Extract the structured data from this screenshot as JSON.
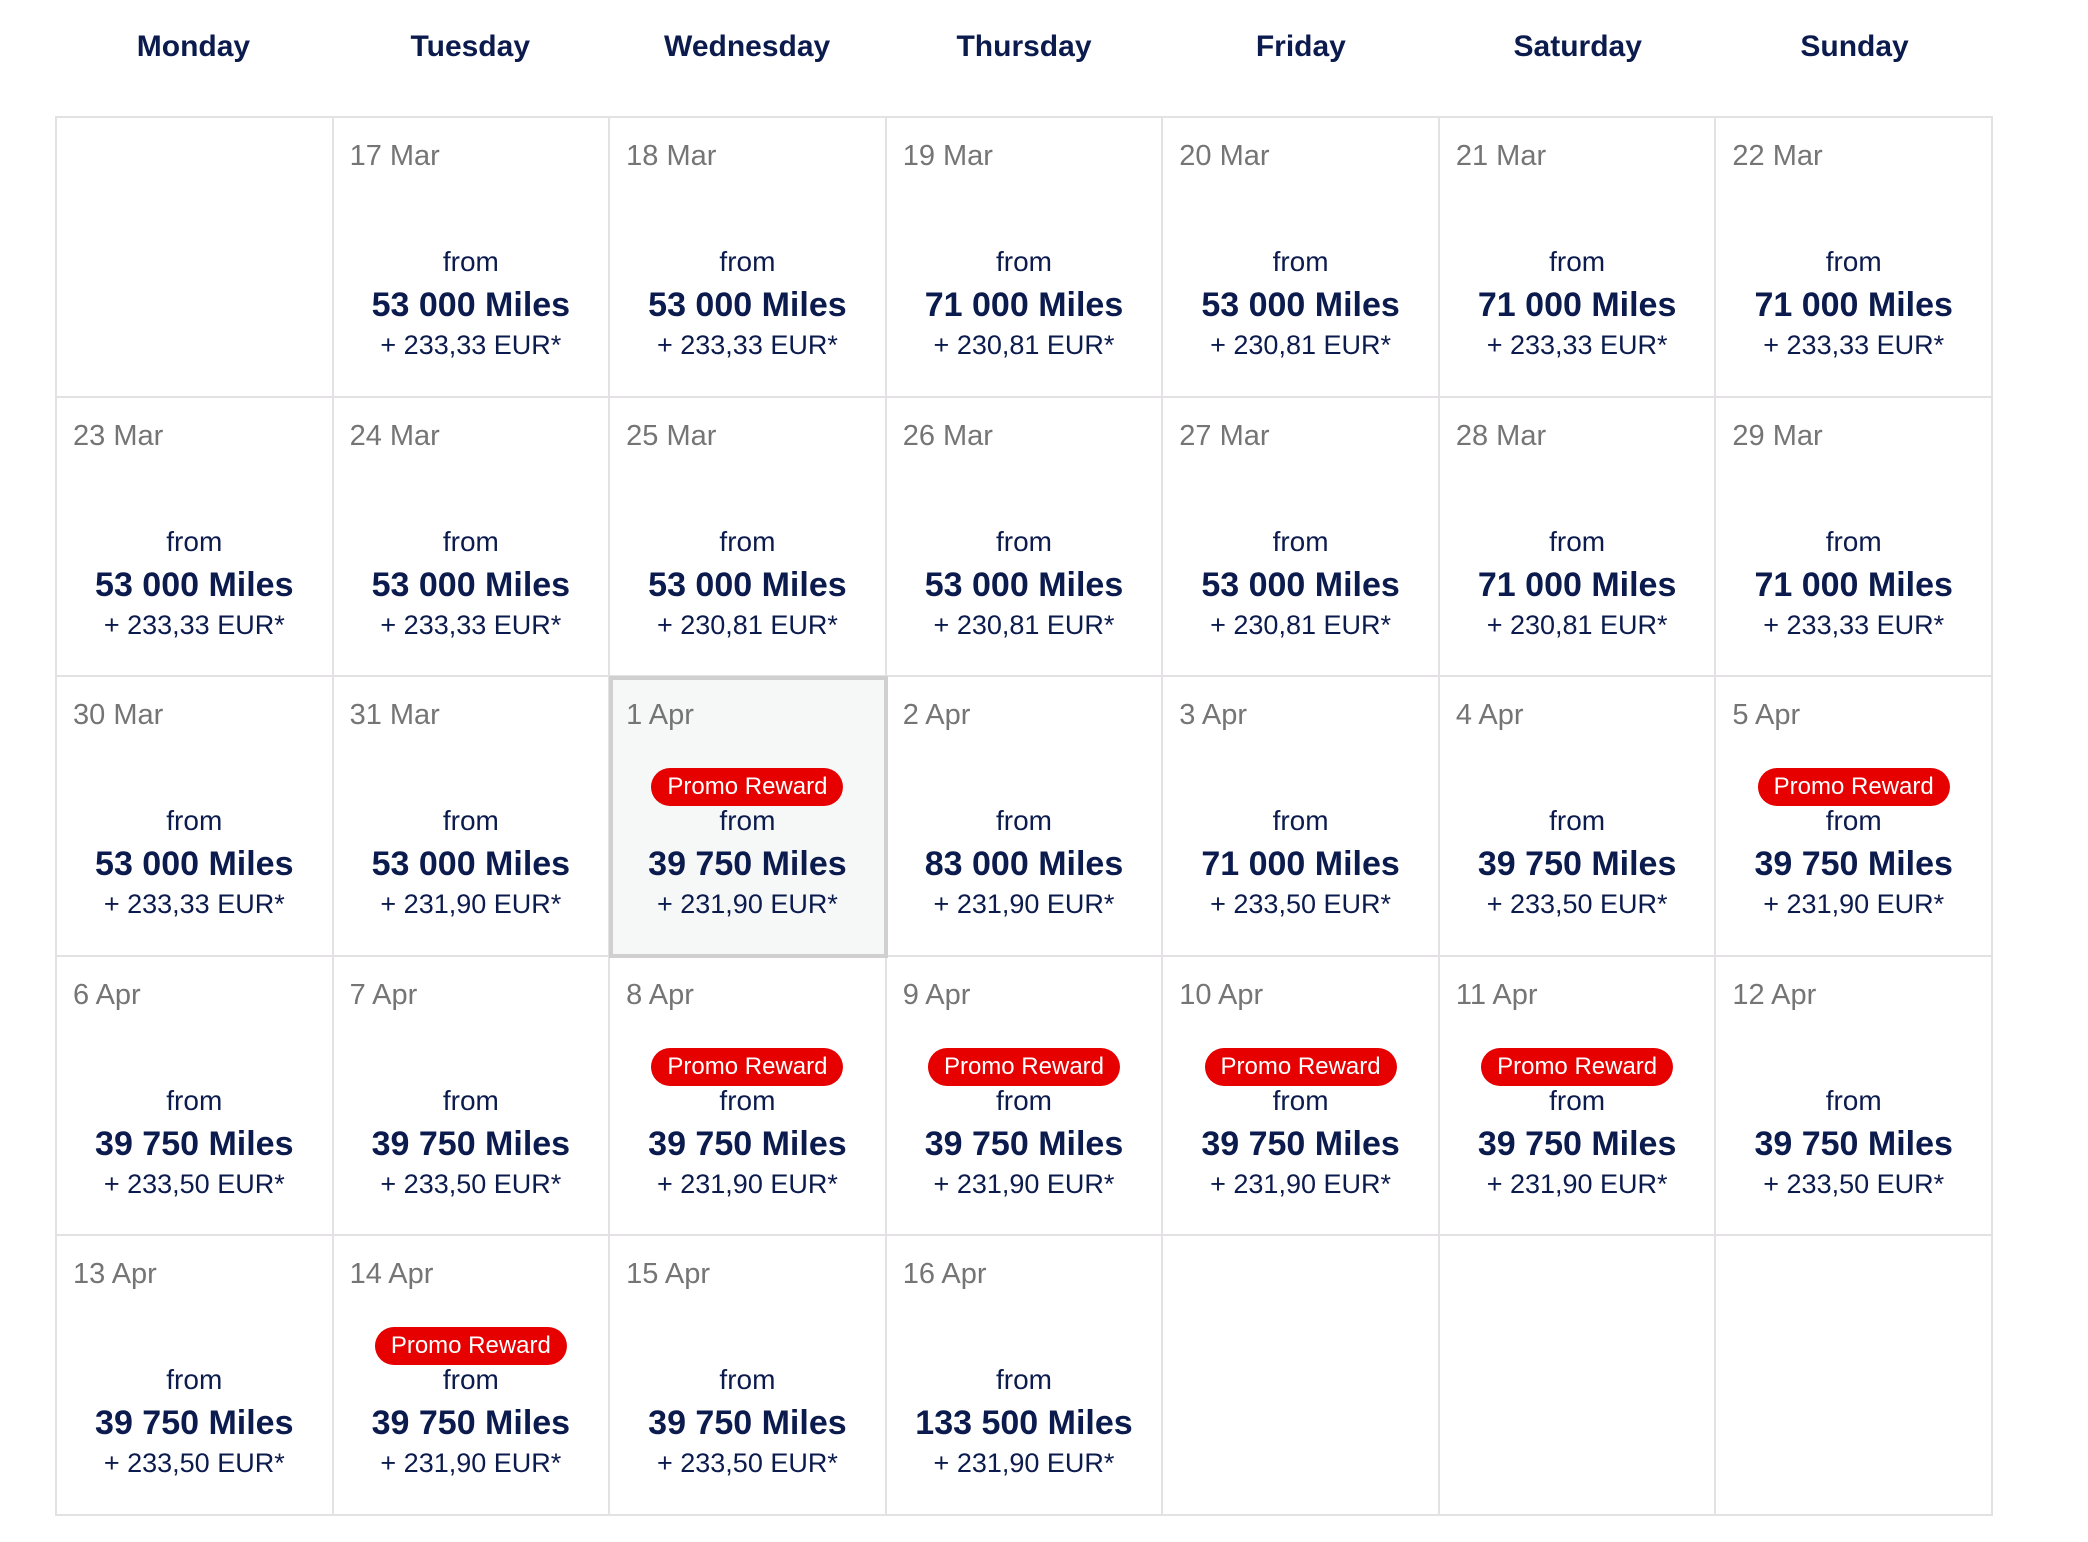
{
  "weekdays": [
    "Monday",
    "Tuesday",
    "Wednesday",
    "Thursday",
    "Friday",
    "Saturday",
    "Sunday"
  ],
  "colors": {
    "text": "#0c1b4d",
    "promo": "#e60000",
    "date": "#757575",
    "border": "#e3e1e3"
  },
  "from_label": "from",
  "promo_label": "Promo Reward",
  "selected_date": "1 Apr",
  "days": [
    null,
    {
      "date": "17 Mar",
      "miles": "53 000 Miles",
      "eur": "+ 233,33 EUR*",
      "promo": false
    },
    {
      "date": "18 Mar",
      "miles": "53 000 Miles",
      "eur": "+ 233,33 EUR*",
      "promo": false
    },
    {
      "date": "19 Mar",
      "miles": "71 000 Miles",
      "eur": "+ 230,81 EUR*",
      "promo": false
    },
    {
      "date": "20 Mar",
      "miles": "53 000 Miles",
      "eur": "+ 230,81 EUR*",
      "promo": false
    },
    {
      "date": "21 Mar",
      "miles": "71 000 Miles",
      "eur": "+ 233,33 EUR*",
      "promo": false
    },
    {
      "date": "22 Mar",
      "miles": "71 000 Miles",
      "eur": "+ 233,33 EUR*",
      "promo": false
    },
    {
      "date": "23 Mar",
      "miles": "53 000 Miles",
      "eur": "+ 233,33 EUR*",
      "promo": false
    },
    {
      "date": "24 Mar",
      "miles": "53 000 Miles",
      "eur": "+ 233,33 EUR*",
      "promo": false
    },
    {
      "date": "25 Mar",
      "miles": "53 000 Miles",
      "eur": "+ 230,81 EUR*",
      "promo": false
    },
    {
      "date": "26 Mar",
      "miles": "53 000 Miles",
      "eur": "+ 230,81 EUR*",
      "promo": false
    },
    {
      "date": "27 Mar",
      "miles": "53 000 Miles",
      "eur": "+ 230,81 EUR*",
      "promo": false
    },
    {
      "date": "28 Mar",
      "miles": "71 000 Miles",
      "eur": "+ 230,81 EUR*",
      "promo": false
    },
    {
      "date": "29 Mar",
      "miles": "71 000 Miles",
      "eur": "+ 233,33 EUR*",
      "promo": false
    },
    {
      "date": "30 Mar",
      "miles": "53 000 Miles",
      "eur": "+ 233,33 EUR*",
      "promo": false
    },
    {
      "date": "31 Mar",
      "miles": "53 000 Miles",
      "eur": "+ 231,90 EUR*",
      "promo": false
    },
    {
      "date": "1 Apr",
      "miles": "39 750 Miles",
      "eur": "+ 231,90 EUR*",
      "promo": true
    },
    {
      "date": "2 Apr",
      "miles": "83 000 Miles",
      "eur": "+ 231,90 EUR*",
      "promo": false
    },
    {
      "date": "3 Apr",
      "miles": "71 000 Miles",
      "eur": "+ 233,50 EUR*",
      "promo": false
    },
    {
      "date": "4 Apr",
      "miles": "39 750 Miles",
      "eur": "+ 233,50 EUR*",
      "promo": false
    },
    {
      "date": "5 Apr",
      "miles": "39 750 Miles",
      "eur": "+ 231,90 EUR*",
      "promo": true
    },
    {
      "date": "6 Apr",
      "miles": "39 750 Miles",
      "eur": "+ 233,50 EUR*",
      "promo": false
    },
    {
      "date": "7 Apr",
      "miles": "39 750 Miles",
      "eur": "+ 233,50 EUR*",
      "promo": false
    },
    {
      "date": "8 Apr",
      "miles": "39 750 Miles",
      "eur": "+ 231,90 EUR*",
      "promo": true
    },
    {
      "date": "9 Apr",
      "miles": "39 750 Miles",
      "eur": "+ 231,90 EUR*",
      "promo": true
    },
    {
      "date": "10 Apr",
      "miles": "39 750 Miles",
      "eur": "+ 231,90 EUR*",
      "promo": true
    },
    {
      "date": "11 Apr",
      "miles": "39 750 Miles",
      "eur": "+ 231,90 EUR*",
      "promo": true
    },
    {
      "date": "12 Apr",
      "miles": "39 750 Miles",
      "eur": "+ 233,50 EUR*",
      "promo": false
    },
    {
      "date": "13 Apr",
      "miles": "39 750 Miles",
      "eur": "+ 233,50 EUR*",
      "promo": false
    },
    {
      "date": "14 Apr",
      "miles": "39 750 Miles",
      "eur": "+ 231,90 EUR*",
      "promo": true
    },
    {
      "date": "15 Apr",
      "miles": "39 750 Miles",
      "eur": "+ 233,50 EUR*",
      "promo": false
    },
    {
      "date": "16 Apr",
      "miles": "133 500 Miles",
      "eur": "+ 231,90 EUR*",
      "promo": false
    },
    null,
    null,
    null
  ]
}
